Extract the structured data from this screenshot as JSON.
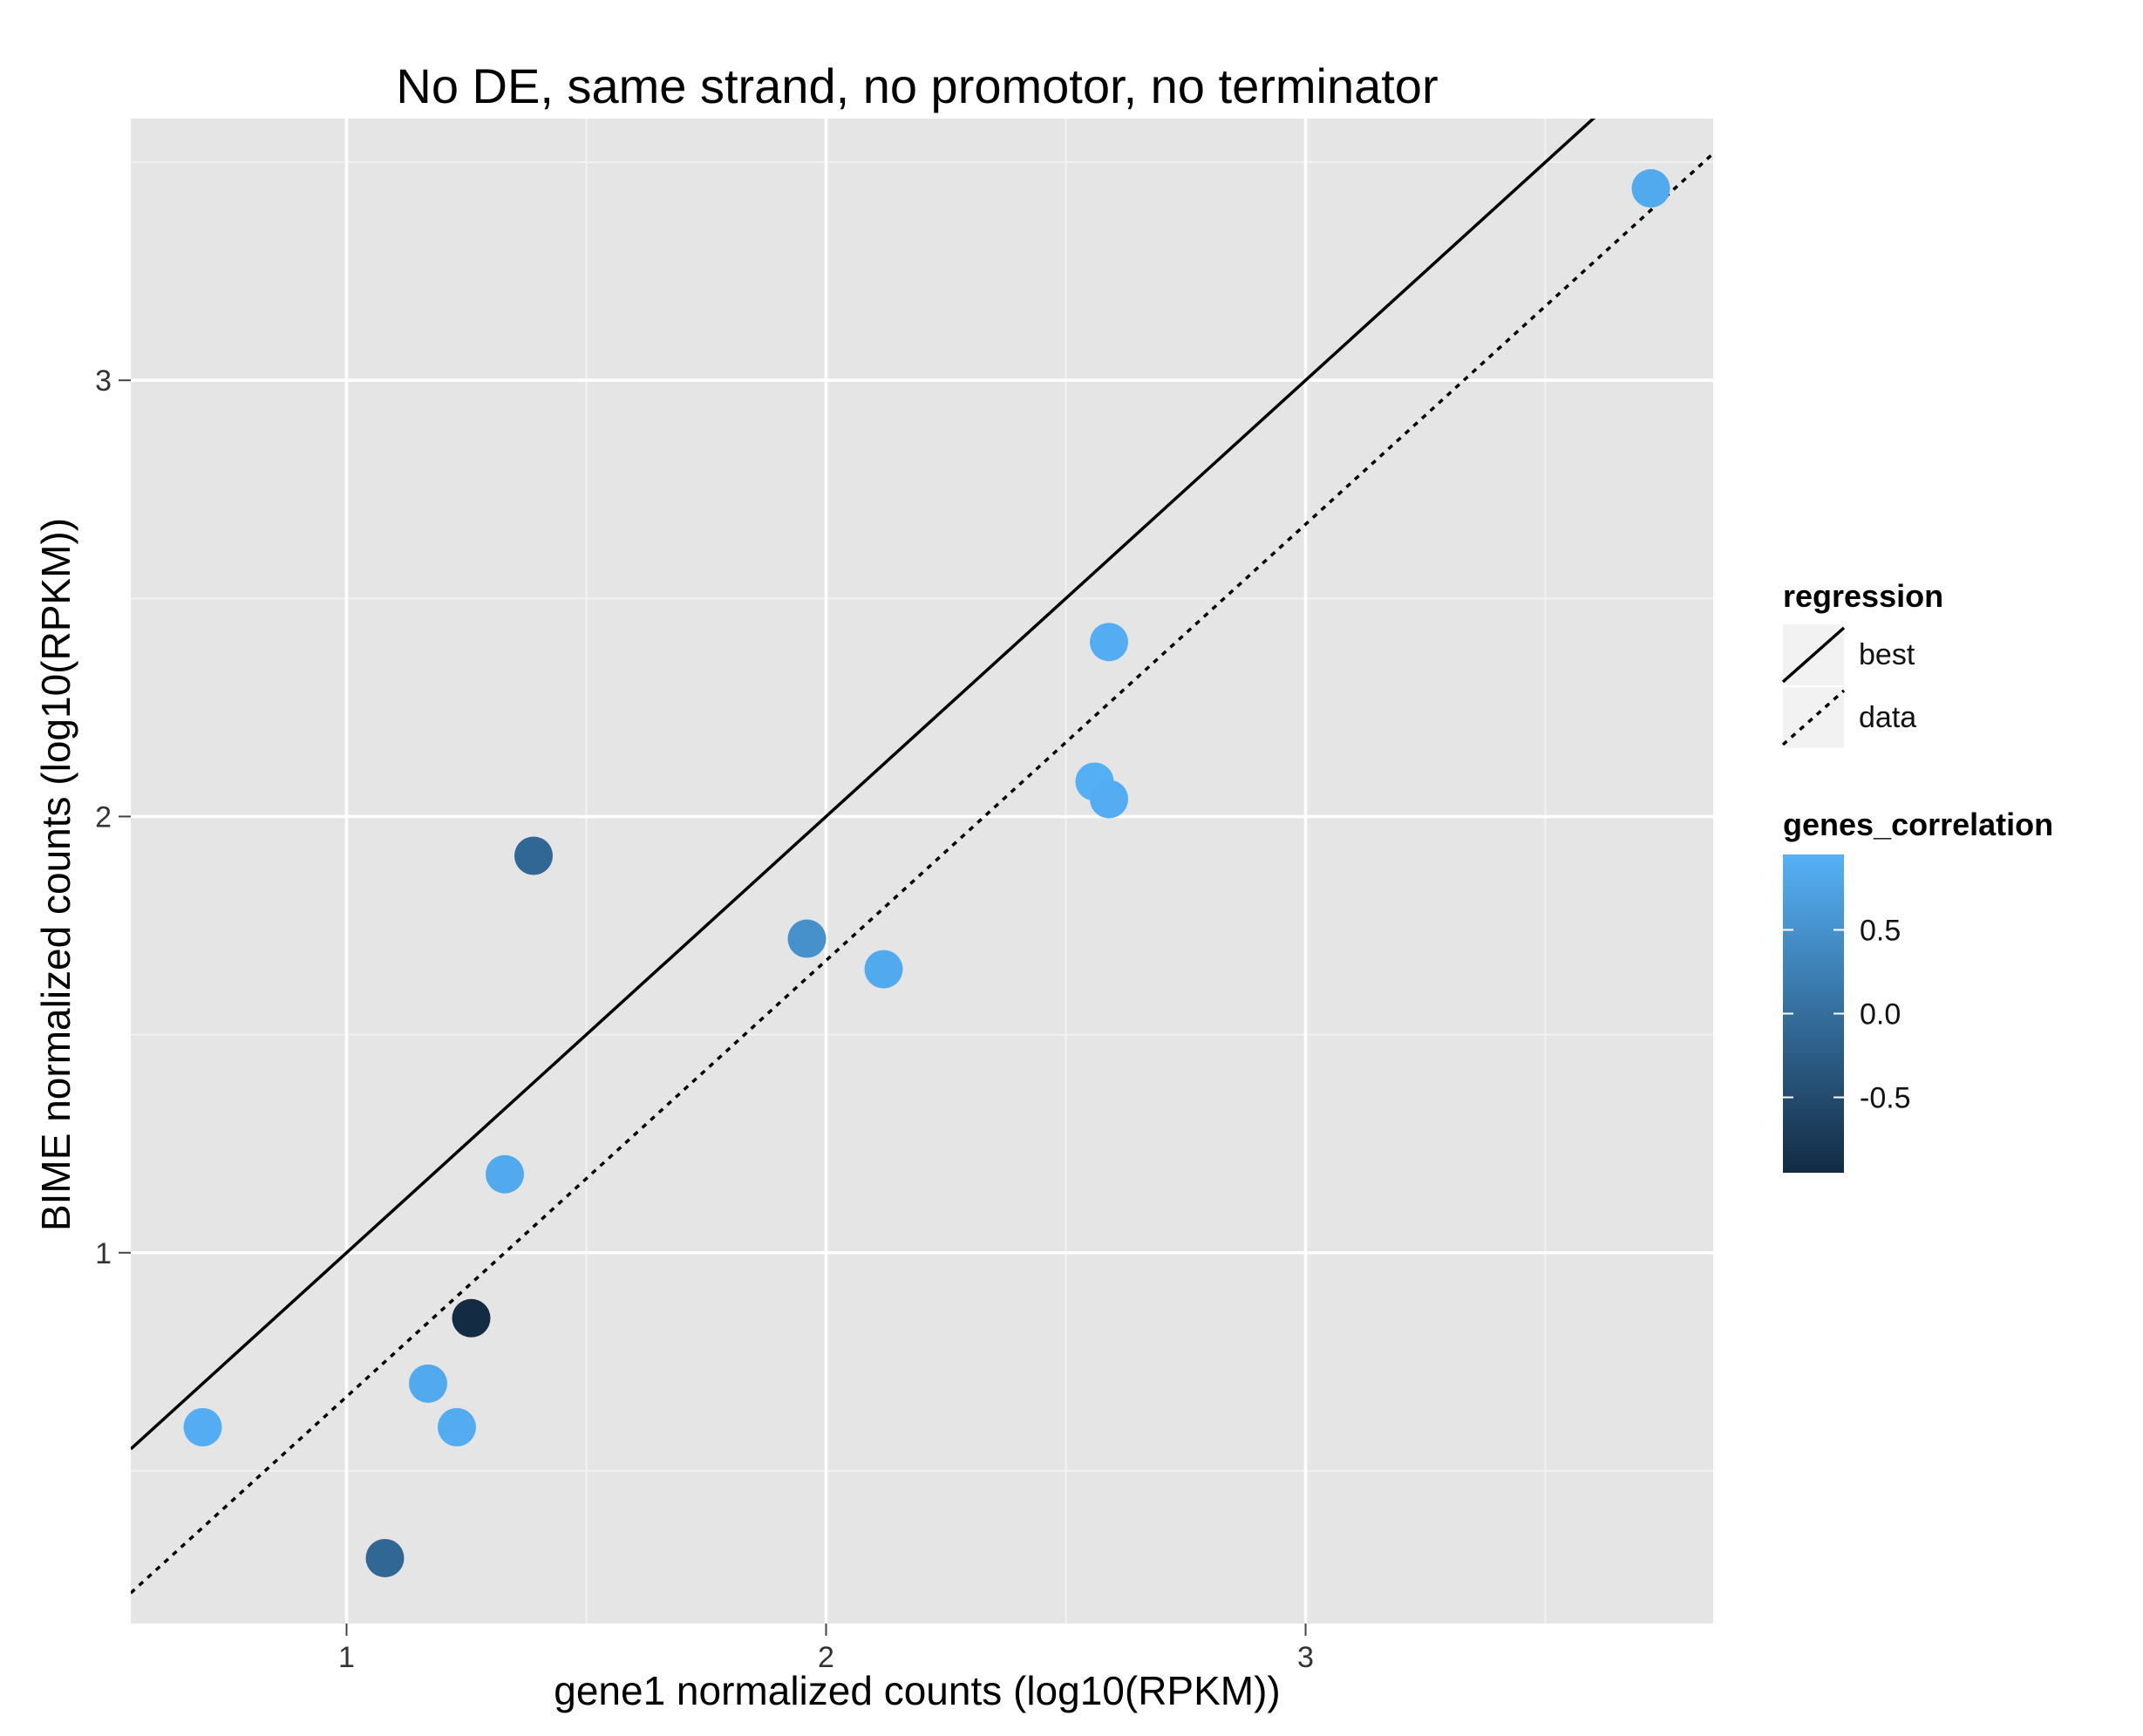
{
  "chart_data": {
    "type": "scatter",
    "title": "No DE, same strand, no promotor, no terminator",
    "xlabel": "gene1 normalized counts (log10(RPKM))",
    "ylabel": "BIME normalized counts (log10(RPKM))",
    "xlim": [
      0.55,
      3.85
    ],
    "ylim": [
      0.15,
      3.6
    ],
    "xticks": [
      1,
      2,
      3
    ],
    "yticks": [
      1,
      2,
      3
    ],
    "xtick_labels": [
      "1",
      "2",
      "3"
    ],
    "ytick_labels": [
      "1",
      "2",
      "3"
    ],
    "grid": true,
    "points": [
      {
        "x": 0.7,
        "y": 0.6,
        "r": 0.9
      },
      {
        "x": 1.08,
        "y": 0.3,
        "r": -0.1
      },
      {
        "x": 1.17,
        "y": 0.7,
        "r": 0.85
      },
      {
        "x": 1.23,
        "y": 0.6,
        "r": 0.88
      },
      {
        "x": 1.26,
        "y": 0.85,
        "r": -0.95
      },
      {
        "x": 1.33,
        "y": 1.18,
        "r": 0.85
      },
      {
        "x": 1.39,
        "y": 1.91,
        "r": -0.1
      },
      {
        "x": 1.96,
        "y": 1.72,
        "r": 0.5
      },
      {
        "x": 2.12,
        "y": 1.65,
        "r": 0.85
      },
      {
        "x": 2.56,
        "y": 2.08,
        "r": 0.92
      },
      {
        "x": 2.59,
        "y": 2.04,
        "r": 0.9
      },
      {
        "x": 2.59,
        "y": 2.4,
        "r": 0.9
      },
      {
        "x": 3.72,
        "y": 3.44,
        "r": 0.85
      }
    ],
    "lines": [
      {
        "name": "best",
        "style": "solid",
        "slope": 1.0,
        "intercept": 0.0
      },
      {
        "name": "data",
        "style": "dotted",
        "slope": 1.0,
        "intercept": -0.33
      }
    ],
    "legend_position": "right",
    "legend": {
      "regression_title": "regression",
      "regression_items": [
        "best",
        "data"
      ],
      "color_title": "genes_correlation",
      "color_ticks": [
        0.5,
        0.0,
        -0.5
      ],
      "color_tick_labels": [
        "0.5",
        "0.0",
        "-0.5"
      ],
      "color_range": [
        -0.95,
        0.95
      ],
      "color_low": "#132B43",
      "color_high": "#56B1F7"
    },
    "panel_background": "#E5E5E5"
  }
}
